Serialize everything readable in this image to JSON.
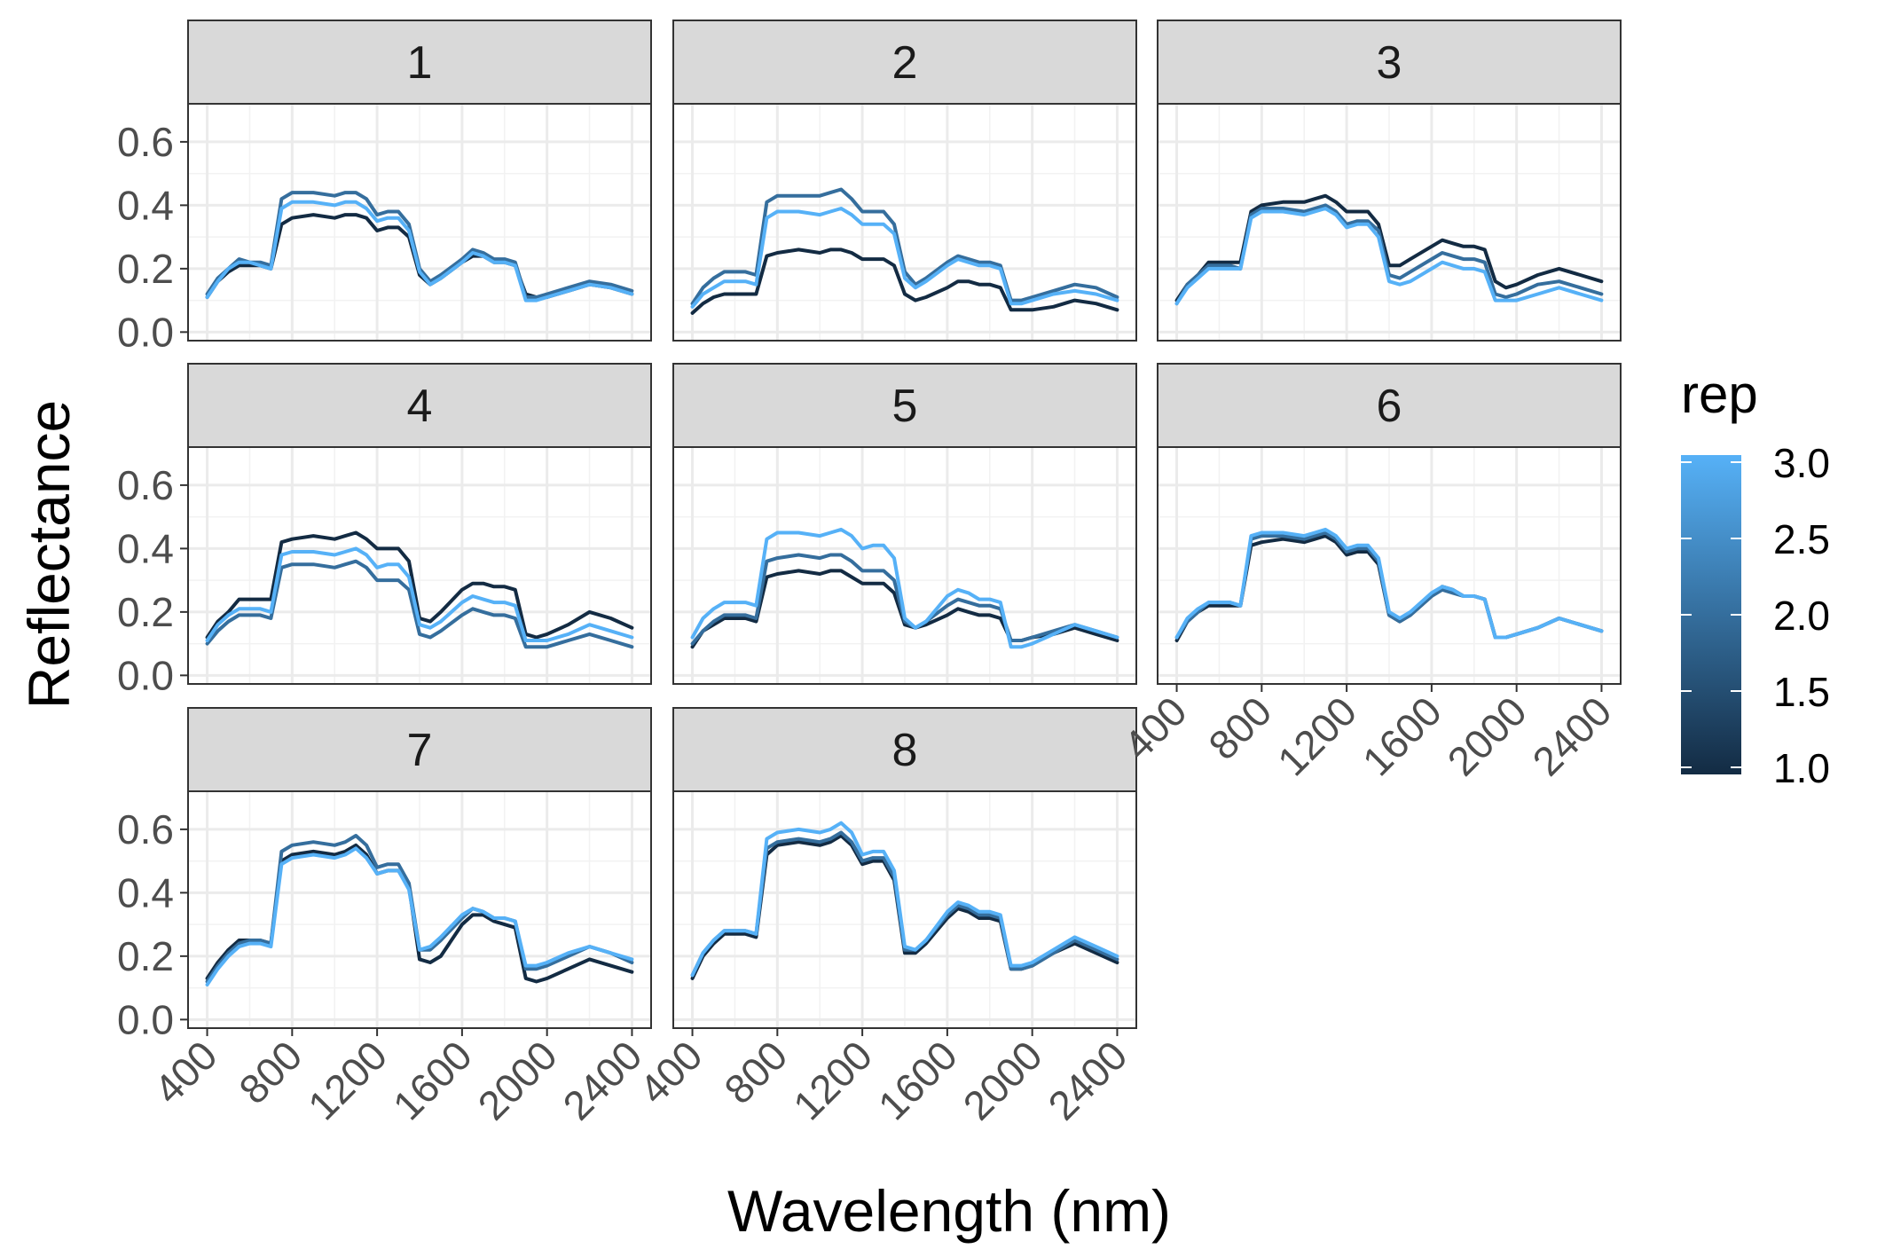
{
  "chart_data": {
    "type": "line",
    "xlabel": "Wavelength (nm)",
    "ylabel": "Reflectance",
    "xlim": [
      400,
      2400
    ],
    "ylim": [
      0,
      0.6
    ],
    "x_ticks": [
      "400",
      "800",
      "1200",
      "1600",
      "2000",
      "2400"
    ],
    "y_ticks": [
      "0.0",
      "0.2",
      "0.4",
      "0.6"
    ],
    "grid": true,
    "x": [
      400,
      450,
      500,
      550,
      600,
      650,
      700,
      750,
      800,
      900,
      1000,
      1050,
      1100,
      1150,
      1200,
      1250,
      1300,
      1350,
      1400,
      1450,
      1500,
      1600,
      1650,
      1700,
      1750,
      1800,
      1850,
      1900,
      1950,
      2000,
      2100,
      2200,
      2300,
      2400
    ],
    "legend": {
      "title": "rep",
      "position": "right",
      "min": 1.0,
      "max": 3.0,
      "labels": [
        "3.0",
        "2.5",
        "2.0",
        "1.5",
        "1.0"
      ],
      "low_color": "#132B43",
      "high_color": "#56B1F7"
    },
    "facets": [
      {
        "label": "1",
        "series": [
          {
            "rep": 1,
            "values": [
              0.11,
              0.16,
              0.19,
              0.21,
              0.21,
              0.21,
              0.2,
              0.34,
              0.36,
              0.37,
              0.36,
              0.37,
              0.37,
              0.36,
              0.32,
              0.33,
              0.33,
              0.3,
              0.18,
              0.15,
              0.17,
              0.22,
              0.24,
              0.24,
              0.22,
              0.22,
              0.21,
              0.12,
              0.11,
              0.11,
              0.13,
              0.15,
              0.14,
              0.12
            ]
          },
          {
            "rep": 2,
            "values": [
              0.12,
              0.17,
              0.2,
              0.23,
              0.22,
              0.22,
              0.21,
              0.42,
              0.44,
              0.44,
              0.43,
              0.44,
              0.44,
              0.42,
              0.37,
              0.38,
              0.38,
              0.34,
              0.2,
              0.16,
              0.18,
              0.23,
              0.26,
              0.25,
              0.23,
              0.23,
              0.22,
              0.11,
              0.11,
              0.12,
              0.14,
              0.16,
              0.15,
              0.13
            ]
          },
          {
            "rep": 3,
            "values": [
              0.11,
              0.16,
              0.2,
              0.22,
              0.22,
              0.21,
              0.2,
              0.39,
              0.41,
              0.41,
              0.4,
              0.41,
              0.41,
              0.39,
              0.35,
              0.36,
              0.36,
              0.32,
              0.19,
              0.15,
              0.17,
              0.22,
              0.25,
              0.24,
              0.22,
              0.22,
              0.21,
              0.1,
              0.1,
              0.11,
              0.13,
              0.15,
              0.14,
              0.12
            ]
          }
        ]
      },
      {
        "label": "2",
        "series": [
          {
            "rep": 1,
            "values": [
              0.06,
              0.09,
              0.11,
              0.12,
              0.12,
              0.12,
              0.12,
              0.24,
              0.25,
              0.26,
              0.25,
              0.26,
              0.26,
              0.25,
              0.23,
              0.23,
              0.23,
              0.21,
              0.12,
              0.1,
              0.11,
              0.14,
              0.16,
              0.16,
              0.15,
              0.15,
              0.14,
              0.07,
              0.07,
              0.07,
              0.08,
              0.1,
              0.09,
              0.07
            ]
          },
          {
            "rep": 2,
            "values": [
              0.09,
              0.14,
              0.17,
              0.19,
              0.19,
              0.19,
              0.18,
              0.41,
              0.43,
              0.43,
              0.43,
              0.44,
              0.45,
              0.42,
              0.38,
              0.38,
              0.38,
              0.34,
              0.19,
              0.15,
              0.17,
              0.22,
              0.24,
              0.23,
              0.22,
              0.22,
              0.21,
              0.1,
              0.1,
              0.11,
              0.13,
              0.15,
              0.14,
              0.11
            ]
          },
          {
            "rep": 3,
            "values": [
              0.08,
              0.12,
              0.14,
              0.16,
              0.16,
              0.16,
              0.15,
              0.36,
              0.38,
              0.38,
              0.37,
              0.38,
              0.39,
              0.37,
              0.34,
              0.34,
              0.34,
              0.31,
              0.17,
              0.14,
              0.16,
              0.21,
              0.23,
              0.22,
              0.21,
              0.21,
              0.2,
              0.09,
              0.09,
              0.1,
              0.12,
              0.13,
              0.12,
              0.1
            ]
          }
        ]
      },
      {
        "label": "3",
        "series": [
          {
            "rep": 1,
            "values": [
              0.1,
              0.15,
              0.18,
              0.22,
              0.22,
              0.22,
              0.22,
              0.38,
              0.4,
              0.41,
              0.41,
              0.42,
              0.43,
              0.41,
              0.38,
              0.38,
              0.38,
              0.34,
              0.21,
              0.21,
              0.23,
              0.27,
              0.29,
              0.28,
              0.27,
              0.27,
              0.26,
              0.16,
              0.14,
              0.15,
              0.18,
              0.2,
              0.18,
              0.16
            ]
          },
          {
            "rep": 2,
            "values": [
              0.09,
              0.15,
              0.18,
              0.21,
              0.21,
              0.21,
              0.2,
              0.37,
              0.39,
              0.39,
              0.38,
              0.39,
              0.4,
              0.38,
              0.34,
              0.35,
              0.35,
              0.32,
              0.18,
              0.17,
              0.19,
              0.23,
              0.25,
              0.24,
              0.23,
              0.23,
              0.22,
              0.12,
              0.11,
              0.12,
              0.15,
              0.16,
              0.14,
              0.12
            ]
          },
          {
            "rep": 3,
            "values": [
              0.09,
              0.14,
              0.17,
              0.2,
              0.2,
              0.2,
              0.2,
              0.36,
              0.38,
              0.38,
              0.37,
              0.38,
              0.39,
              0.37,
              0.33,
              0.34,
              0.34,
              0.3,
              0.16,
              0.15,
              0.16,
              0.2,
              0.22,
              0.21,
              0.2,
              0.2,
              0.19,
              0.1,
              0.1,
              0.1,
              0.12,
              0.14,
              0.12,
              0.1
            ]
          }
        ]
      },
      {
        "label": "4",
        "series": [
          {
            "rep": 1,
            "values": [
              0.12,
              0.17,
              0.2,
              0.24,
              0.24,
              0.24,
              0.24,
              0.42,
              0.43,
              0.44,
              0.43,
              0.44,
              0.45,
              0.43,
              0.4,
              0.4,
              0.4,
              0.36,
              0.18,
              0.17,
              0.2,
              0.27,
              0.29,
              0.29,
              0.28,
              0.28,
              0.27,
              0.13,
              0.12,
              0.13,
              0.16,
              0.2,
              0.18,
              0.15
            ]
          },
          {
            "rep": 2,
            "values": [
              0.1,
              0.14,
              0.17,
              0.19,
              0.19,
              0.19,
              0.18,
              0.34,
              0.35,
              0.35,
              0.34,
              0.35,
              0.36,
              0.34,
              0.3,
              0.3,
              0.3,
              0.27,
              0.13,
              0.12,
              0.14,
              0.19,
              0.21,
              0.2,
              0.19,
              0.19,
              0.18,
              0.09,
              0.09,
              0.09,
              0.11,
              0.13,
              0.11,
              0.09
            ]
          },
          {
            "rep": 3,
            "values": [
              0.11,
              0.16,
              0.19,
              0.21,
              0.21,
              0.21,
              0.2,
              0.38,
              0.39,
              0.39,
              0.38,
              0.39,
              0.4,
              0.38,
              0.34,
              0.35,
              0.35,
              0.31,
              0.16,
              0.15,
              0.17,
              0.23,
              0.25,
              0.24,
              0.23,
              0.23,
              0.22,
              0.11,
              0.11,
              0.11,
              0.13,
              0.16,
              0.14,
              0.12
            ]
          }
        ]
      },
      {
        "label": "5",
        "series": [
          {
            "rep": 1,
            "values": [
              0.09,
              0.14,
              0.16,
              0.18,
              0.18,
              0.18,
              0.17,
              0.31,
              0.32,
              0.33,
              0.32,
              0.33,
              0.33,
              0.31,
              0.29,
              0.29,
              0.29,
              0.26,
              0.16,
              0.15,
              0.16,
              0.19,
              0.21,
              0.2,
              0.19,
              0.19,
              0.18,
              0.11,
              0.11,
              0.12,
              0.13,
              0.15,
              0.13,
              0.11
            ]
          },
          {
            "rep": 2,
            "values": [
              0.1,
              0.14,
              0.17,
              0.19,
              0.19,
              0.19,
              0.18,
              0.36,
              0.37,
              0.38,
              0.37,
              0.38,
              0.38,
              0.36,
              0.33,
              0.33,
              0.33,
              0.3,
              0.17,
              0.15,
              0.17,
              0.22,
              0.24,
              0.23,
              0.22,
              0.22,
              0.21,
              0.11,
              0.11,
              0.12,
              0.14,
              0.16,
              0.14,
              0.12
            ]
          },
          {
            "rep": 3,
            "values": [
              0.12,
              0.18,
              0.21,
              0.23,
              0.23,
              0.23,
              0.22,
              0.43,
              0.45,
              0.45,
              0.44,
              0.45,
              0.46,
              0.44,
              0.4,
              0.41,
              0.41,
              0.37,
              0.18,
              0.15,
              0.17,
              0.25,
              0.27,
              0.26,
              0.24,
              0.24,
              0.23,
              0.09,
              0.09,
              0.1,
              0.13,
              0.16,
              0.14,
              0.12
            ]
          }
        ]
      },
      {
        "label": "6",
        "series": [
          {
            "rep": 1,
            "values": [
              0.11,
              0.17,
              0.2,
              0.22,
              0.22,
              0.22,
              0.22,
              0.41,
              0.42,
              0.43,
              0.42,
              0.43,
              0.44,
              0.42,
              0.38,
              0.39,
              0.39,
              0.35,
              0.19,
              0.17,
              0.19,
              0.25,
              0.28,
              0.27,
              0.25,
              0.25,
              0.24,
              0.12,
              0.12,
              0.13,
              0.15,
              0.18,
              0.16,
              0.14
            ]
          },
          {
            "rep": 2,
            "values": [
              0.12,
              0.17,
              0.2,
              0.23,
              0.23,
              0.23,
              0.22,
              0.43,
              0.44,
              0.44,
              0.43,
              0.44,
              0.45,
              0.43,
              0.39,
              0.4,
              0.4,
              0.36,
              0.19,
              0.17,
              0.19,
              0.25,
              0.27,
              0.26,
              0.25,
              0.25,
              0.24,
              0.12,
              0.12,
              0.13,
              0.15,
              0.18,
              0.16,
              0.14
            ]
          },
          {
            "rep": 3,
            "values": [
              0.12,
              0.18,
              0.21,
              0.23,
              0.23,
              0.23,
              0.22,
              0.44,
              0.45,
              0.45,
              0.44,
              0.45,
              0.46,
              0.44,
              0.4,
              0.41,
              0.41,
              0.37,
              0.2,
              0.18,
              0.2,
              0.26,
              0.28,
              0.27,
              0.25,
              0.25,
              0.24,
              0.12,
              0.12,
              0.13,
              0.15,
              0.18,
              0.16,
              0.14
            ]
          }
        ]
      },
      {
        "label": "7",
        "series": [
          {
            "rep": 1,
            "values": [
              0.13,
              0.18,
              0.22,
              0.25,
              0.25,
              0.25,
              0.24,
              0.5,
              0.52,
              0.53,
              0.52,
              0.53,
              0.55,
              0.52,
              0.46,
              0.47,
              0.47,
              0.42,
              0.19,
              0.18,
              0.2,
              0.3,
              0.33,
              0.33,
              0.31,
              0.3,
              0.29,
              0.13,
              0.12,
              0.13,
              0.16,
              0.19,
              0.17,
              0.15
            ]
          },
          {
            "rep": 2,
            "values": [
              0.12,
              0.17,
              0.21,
              0.24,
              0.25,
              0.25,
              0.24,
              0.53,
              0.55,
              0.56,
              0.55,
              0.56,
              0.58,
              0.55,
              0.48,
              0.49,
              0.49,
              0.43,
              0.22,
              0.22,
              0.25,
              0.32,
              0.35,
              0.34,
              0.32,
              0.32,
              0.31,
              0.16,
              0.16,
              0.17,
              0.2,
              0.23,
              0.21,
              0.18
            ]
          },
          {
            "rep": 3,
            "values": [
              0.11,
              0.16,
              0.2,
              0.23,
              0.24,
              0.24,
              0.23,
              0.49,
              0.51,
              0.52,
              0.51,
              0.52,
              0.54,
              0.51,
              0.46,
              0.47,
              0.47,
              0.41,
              0.22,
              0.23,
              0.26,
              0.33,
              0.35,
              0.34,
              0.32,
              0.32,
              0.31,
              0.17,
              0.17,
              0.18,
              0.21,
              0.23,
              0.21,
              0.19
            ]
          }
        ]
      },
      {
        "label": "8",
        "series": [
          {
            "rep": 1,
            "values": [
              0.13,
              0.2,
              0.24,
              0.27,
              0.27,
              0.27,
              0.26,
              0.52,
              0.55,
              0.56,
              0.55,
              0.56,
              0.58,
              0.55,
              0.49,
              0.5,
              0.5,
              0.44,
              0.21,
              0.21,
              0.24,
              0.32,
              0.35,
              0.34,
              0.32,
              0.32,
              0.31,
              0.16,
              0.16,
              0.17,
              0.21,
              0.24,
              0.21,
              0.18
            ]
          },
          {
            "rep": 2,
            "values": [
              0.14,
              0.21,
              0.25,
              0.28,
              0.28,
              0.28,
              0.27,
              0.54,
              0.56,
              0.57,
              0.56,
              0.57,
              0.59,
              0.56,
              0.5,
              0.51,
              0.51,
              0.45,
              0.22,
              0.22,
              0.25,
              0.33,
              0.36,
              0.35,
              0.33,
              0.33,
              0.32,
              0.16,
              0.16,
              0.17,
              0.21,
              0.25,
              0.22,
              0.19
            ]
          },
          {
            "rep": 3,
            "values": [
              0.14,
              0.21,
              0.25,
              0.28,
              0.28,
              0.28,
              0.27,
              0.57,
              0.59,
              0.6,
              0.59,
              0.6,
              0.62,
              0.59,
              0.52,
              0.53,
              0.53,
              0.47,
              0.23,
              0.22,
              0.25,
              0.34,
              0.37,
              0.36,
              0.34,
              0.34,
              0.33,
              0.17,
              0.17,
              0.18,
              0.22,
              0.26,
              0.23,
              0.2
            ]
          }
        ]
      }
    ]
  }
}
